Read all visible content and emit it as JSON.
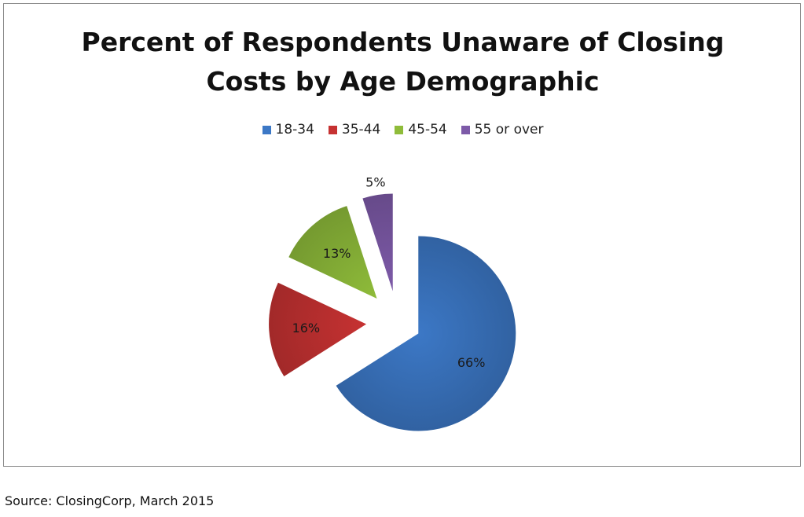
{
  "chart_data": {
    "type": "pie",
    "title_lines": [
      "Percent of Respondents Unaware of Closing",
      "Costs by Age Demographic"
    ],
    "legend_position": "top",
    "exploded": true,
    "slices": [
      {
        "label": "18-34",
        "value": 66,
        "data_label": "66%",
        "color": "#3c78c6"
      },
      {
        "label": "35-44",
        "value": 16,
        "data_label": "16%",
        "color": "#c63232"
      },
      {
        "label": "45-54",
        "value": 13,
        "data_label": "13%",
        "color": "#8fbc3a"
      },
      {
        "label": "55 or over",
        "value": 5,
        "data_label": "5%",
        "color": "#7d5aa8"
      }
    ]
  },
  "source": "Source: ClosingCorp, March 2015"
}
